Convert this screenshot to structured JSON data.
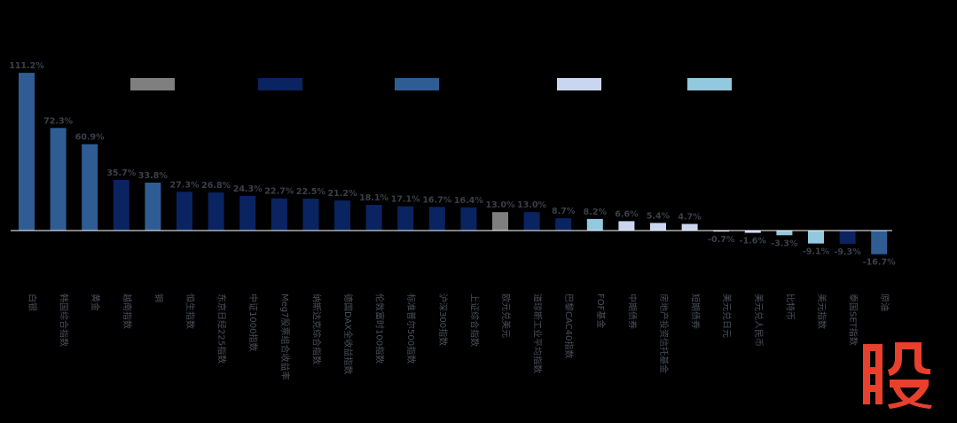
{
  "chart_data": {
    "type": "bar",
    "categories": [
      "白银",
      "韩国综合指数",
      "黄金",
      "越南指数",
      "铜",
      "恒生指数",
      "东京日经225指数",
      "中证1000指数",
      "Meg7股票组合收益率",
      "纳斯达克综合指数",
      "德国DAX全收益指数",
      "伦敦富时100指数",
      "标准普尔500指数",
      "沪深300指数",
      "上证综合指数",
      "欧元兑美元",
      "道琼斯工业平均指数",
      "巴黎CAC40指数",
      "FOF基金",
      "中期债券",
      "房地产投资信托基金",
      "短期债券",
      "美元兑日元",
      "美元兑人民币",
      "比特币",
      "美元指数",
      "泰国SET指数",
      "原油"
    ],
    "values": [
      111.2,
      72.3,
      60.9,
      35.7,
      33.8,
      27.3,
      26.8,
      24.3,
      22.7,
      22.5,
      21.2,
      18.1,
      17.1,
      16.7,
      16.4,
      13.0,
      13.0,
      8.7,
      8.2,
      6.6,
      5.4,
      4.7,
      -0.7,
      -1.6,
      -3.3,
      -9.1,
      -9.3,
      -16.7
    ],
    "value_labels": [
      "111.2%",
      "72.3%",
      "60.9%",
      "35.7%",
      "33.8%",
      "27.3%",
      "26.8%",
      "24.3%",
      "22.7%",
      "22.5%",
      "21.2%",
      "18.1%",
      "17.1%",
      "16.7%",
      "16.4%",
      "13.0%",
      "13.0%",
      "8.7%",
      "8.2%",
      "6.6%",
      "5.4%",
      "4.7%",
      "-0.7%",
      "-1.6%",
      "-3.3%",
      "-9.1%",
      "-9.3%",
      "-16.7%"
    ],
    "group_of_bar": [
      2,
      2,
      2,
      1,
      2,
      1,
      1,
      1,
      1,
      1,
      1,
      1,
      1,
      1,
      1,
      0,
      1,
      1,
      4,
      3,
      3,
      3,
      3,
      3,
      4,
      4,
      1,
      2
    ],
    "legend_groups": [
      {
        "color": "#7f7f7f"
      },
      {
        "color": "#0a2361"
      },
      {
        "color": "#2f5d93"
      },
      {
        "color": "#c9d6f0"
      },
      {
        "color": "#93c9df"
      }
    ],
    "ylim": [
      -20,
      115
    ],
    "legend_position": "top",
    "grid": false,
    "title": "",
    "xlabel": "",
    "ylabel": ""
  },
  "watermark": {
    "text": "股",
    "color": "#e8402c"
  }
}
